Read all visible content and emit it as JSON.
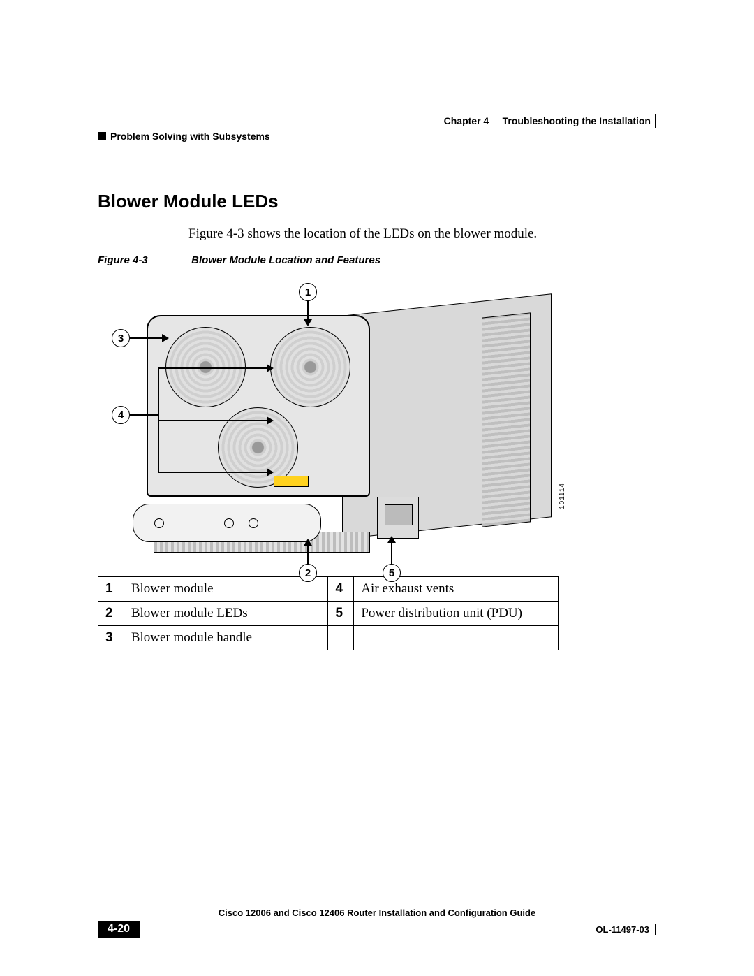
{
  "header": {
    "chapter_label": "Chapter 4",
    "chapter_title": "Troubleshooting the Installation",
    "section_title": "Problem Solving with Subsystems"
  },
  "heading": "Blower Module LEDs",
  "intro_text": "Figure 4-3 shows the location of the LEDs on the blower module.",
  "figure": {
    "label": "Figure 4-3",
    "caption": "Blower Module Location and Features",
    "image_id": "101114",
    "callouts": {
      "c1": "1",
      "c2": "2",
      "c3": "3",
      "c4": "4",
      "c5": "5"
    },
    "colors": {
      "chassis": "#d9d9d9",
      "face": "#e6e6e6",
      "warning_label": "#ffd21f",
      "line": "#000000"
    }
  },
  "legend": {
    "rows": [
      {
        "n": "1",
        "d": "Blower module",
        "n2": "4",
        "d2": "Air exhaust vents"
      },
      {
        "n": "2",
        "d": "Blower module LEDs",
        "n2": "5",
        "d2": "Power distribution unit (PDU)"
      },
      {
        "n": "3",
        "d": "Blower module handle",
        "n2": "",
        "d2": ""
      }
    ]
  },
  "footer": {
    "guide_title": "Cisco 12006 and Cisco 12406 Router Installation and Configuration Guide",
    "page_number": "4-20",
    "doc_id": "OL-11497-03"
  }
}
